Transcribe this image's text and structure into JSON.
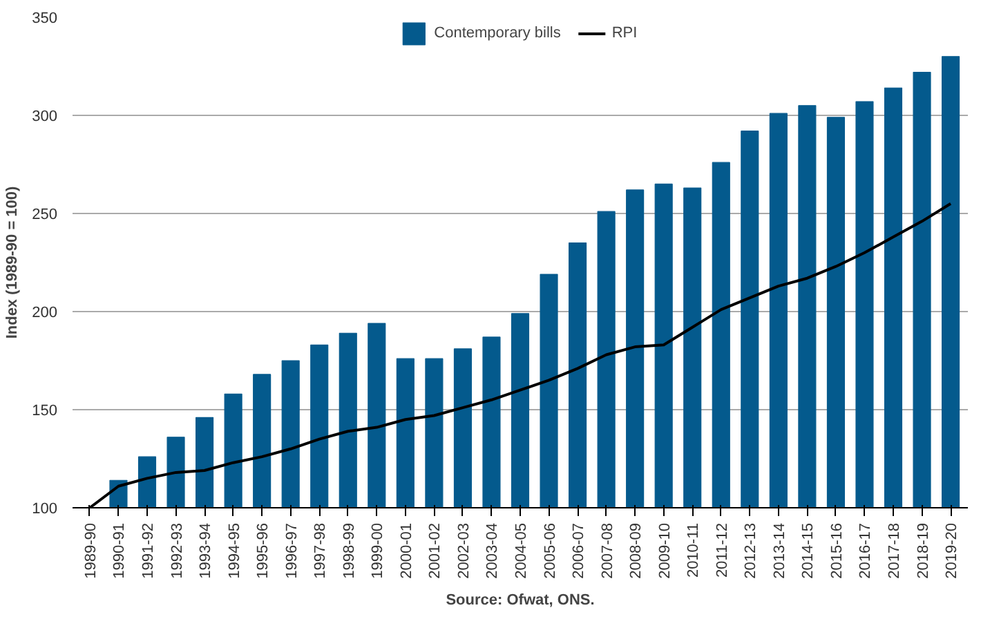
{
  "chart_data": {
    "type": "bar",
    "categories": [
      "1989-90",
      "1990-91",
      "1991-92",
      "1992-93",
      "1993-94",
      "1994-95",
      "1995-96",
      "1996-97",
      "1997-98",
      "1998-99",
      "1999-00",
      "2000-01",
      "2001-02",
      "2002-03",
      "2003-04",
      "2004-05",
      "2005-06",
      "2006-07",
      "2007-08",
      "2008-09",
      "2009-10",
      "2010-11",
      "2011-12",
      "2012-13",
      "2013-14",
      "2014-15",
      "2015-16",
      "2016-17",
      "2017-18",
      "2018-19",
      "2019-20"
    ],
    "series": [
      {
        "name": "Contemporary bills",
        "color": "#045a8d",
        "values": [
          100,
          114,
          126,
          136,
          146,
          158,
          168,
          175,
          183,
          189,
          194,
          176,
          176,
          181,
          187,
          199,
          219,
          235,
          251,
          262,
          265,
          263,
          276,
          292,
          301,
          305,
          299,
          307,
          314,
          322,
          330
        ]
      },
      {
        "name": "RPI",
        "type": "line",
        "color": "#000000",
        "values": [
          100,
          111,
          115,
          118,
          119,
          123,
          126,
          130,
          135,
          139,
          141,
          145,
          147,
          151,
          155,
          160,
          165,
          171,
          178,
          182,
          183,
          192,
          201,
          207,
          213,
          217,
          223,
          230,
          238,
          246,
          255
        ]
      }
    ],
    "ylabel": "Index (1989-90 = 100)",
    "ylim": [
      100,
      350
    ],
    "yticks": [
      100,
      150,
      200,
      250,
      300,
      350
    ],
    "grid": "y",
    "legend": "top",
    "annotations": [
      "Source: Ofwat, ONS."
    ]
  }
}
